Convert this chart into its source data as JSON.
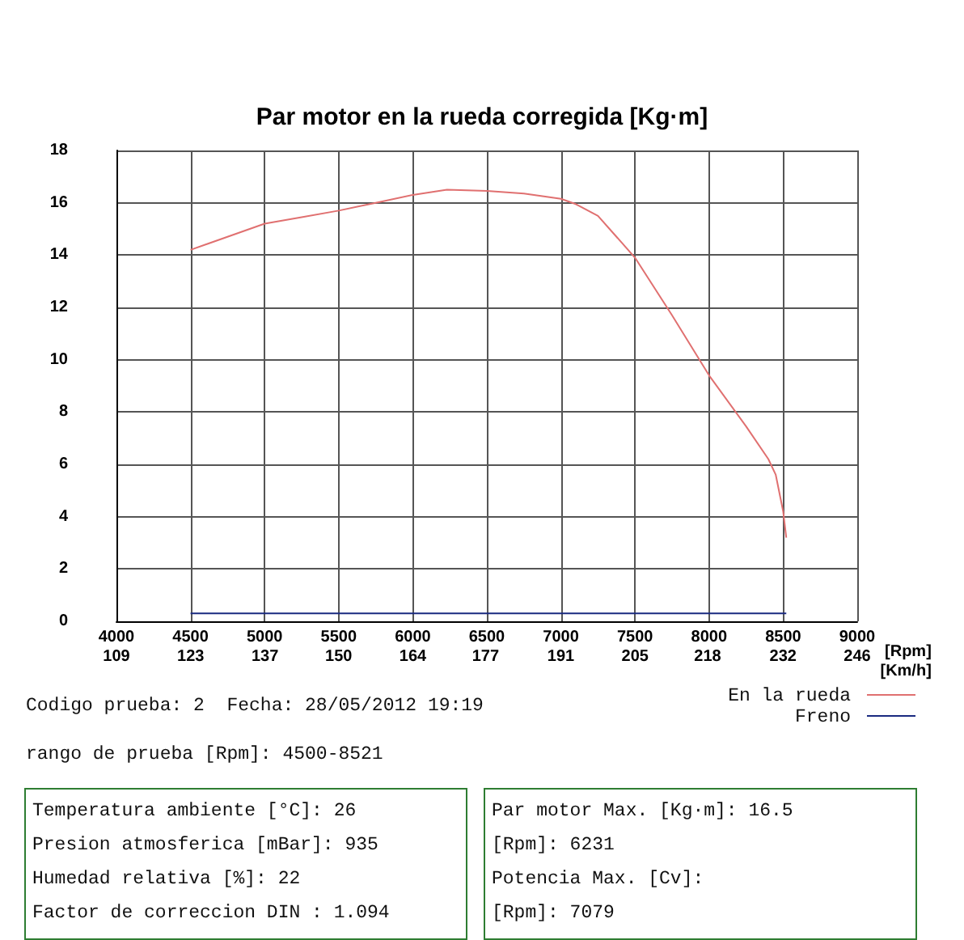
{
  "chart_data": {
    "type": "line",
    "title": "Par motor en la rueda corregida [Kg·m]",
    "xlabel": "[Rpm]",
    "x2label": "[Km/h]",
    "xlim": [
      4000,
      9000
    ],
    "xticks": [
      4000,
      4500,
      5000,
      5500,
      6000,
      6500,
      7000,
      7500,
      8000,
      8500,
      9000
    ],
    "x2lim": [
      109.3,
      246
    ],
    "x2ticks": [
      {
        "value": 109.3,
        "label": "109"
      },
      123,
      {
        "value": 136.7,
        "label": "137"
      },
      {
        "value": 150.3,
        "label": "150"
      },
      164,
      {
        "value": 177.4,
        "label": "177"
      },
      {
        "value": 191.3,
        "label": "191"
      },
      205,
      {
        "value": 218.4,
        "label": "218"
      },
      {
        "value": 232.3,
        "label": "232"
      },
      246
    ],
    "ylim": [
      0,
      18
    ],
    "yticks": [
      0,
      2,
      4,
      6,
      8,
      10,
      12,
      14,
      16,
      18
    ],
    "grid": true,
    "legend": "bottom right",
    "marker": "none",
    "line_style": "solid",
    "series": [
      {
        "name": "En la rueda",
        "color": "#e07070",
        "x": [
          4500,
          5000,
          5250,
          5500,
          5750,
          6000,
          6231,
          6500,
          6750,
          7000,
          7100,
          7250,
          7500,
          7750,
          8000,
          8250,
          8400,
          8450,
          8500,
          8521
        ],
        "values": [
          14.2,
          15.2,
          15.45,
          15.7,
          16.0,
          16.3,
          16.5,
          16.45,
          16.35,
          16.15,
          15.95,
          15.5,
          13.9,
          11.7,
          9.4,
          7.45,
          6.2,
          5.6,
          4.2,
          3.2
        ]
      },
      {
        "name": "Freno",
        "color": "#1a2a80",
        "x": [
          4500,
          8521
        ],
        "values": [
          0.3,
          0.3
        ]
      }
    ],
    "annotations": [
      "Codigo prueba: 2  Fecha: 28/05/2012 19:19",
      "rango de prueba [Rpm]: 4500-8521",
      "Temperatura ambiente [°C]: 26",
      "Presion atmosferica [mBar]: 935",
      "Humedad relativa [%]: 22",
      "Factor de correccion DIN : 1.094",
      "Par motor Max. [Kg·m]: 16.5",
      "[Rpm]: 6231",
      "Potencia Max. [Cv]:",
      "[Rpm]: 7079"
    ]
  }
}
